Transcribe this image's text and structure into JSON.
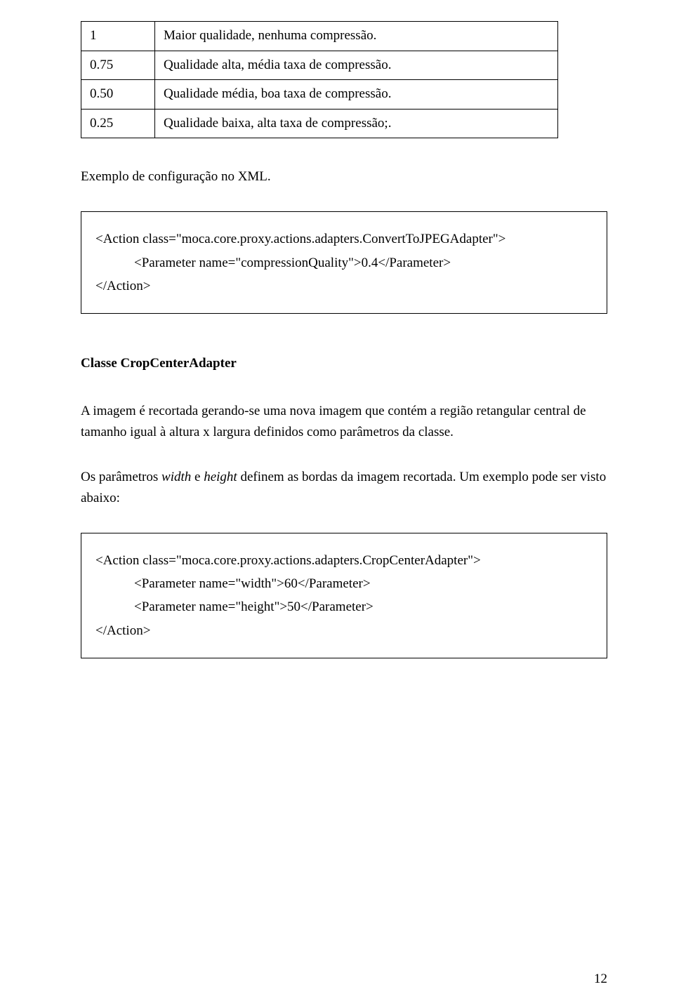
{
  "table": {
    "rows": [
      {
        "key": "1",
        "desc": "Maior qualidade, nenhuma compressão."
      },
      {
        "key": "0.75",
        "desc": "Qualidade alta, média taxa de compressão."
      },
      {
        "key": "0.50",
        "desc": "Qualidade média, boa taxa de compressão."
      },
      {
        "key": "0.25",
        "desc": "Qualidade baixa, alta taxa de compressão;."
      }
    ]
  },
  "intro1": "Exemplo de configuração no XML.",
  "code1": {
    "line1": "<Action class=\"moca.core.proxy.actions.adapters.ConvertToJPEGAdapter\">",
    "line2": "<Parameter name=\"compressionQuality\">0.4</Parameter>",
    "line3": "</Action>"
  },
  "heading": "Classe CropCenterAdapter",
  "para1": "A imagem é recortada gerando-se uma nova imagem que contém a região retangular central de tamanho igual à altura x largura definidos como parâmetros da classe.",
  "para2_pre": "Os parâmetros ",
  "para2_w": "width",
  "para2_mid": "  e ",
  "para2_h": "height",
  "para2_post": "  definem as bordas da imagem recortada. Um exemplo pode ser visto abaixo:",
  "code2": {
    "line1": "<Action class=\"moca.core.proxy.actions.adapters.CropCenterAdapter\">",
    "line2": "<Parameter name=\"width\">60</Parameter>",
    "line3": "<Parameter name=\"height\">50</Parameter>",
    "line4": "</Action>"
  },
  "pagenum": "12"
}
